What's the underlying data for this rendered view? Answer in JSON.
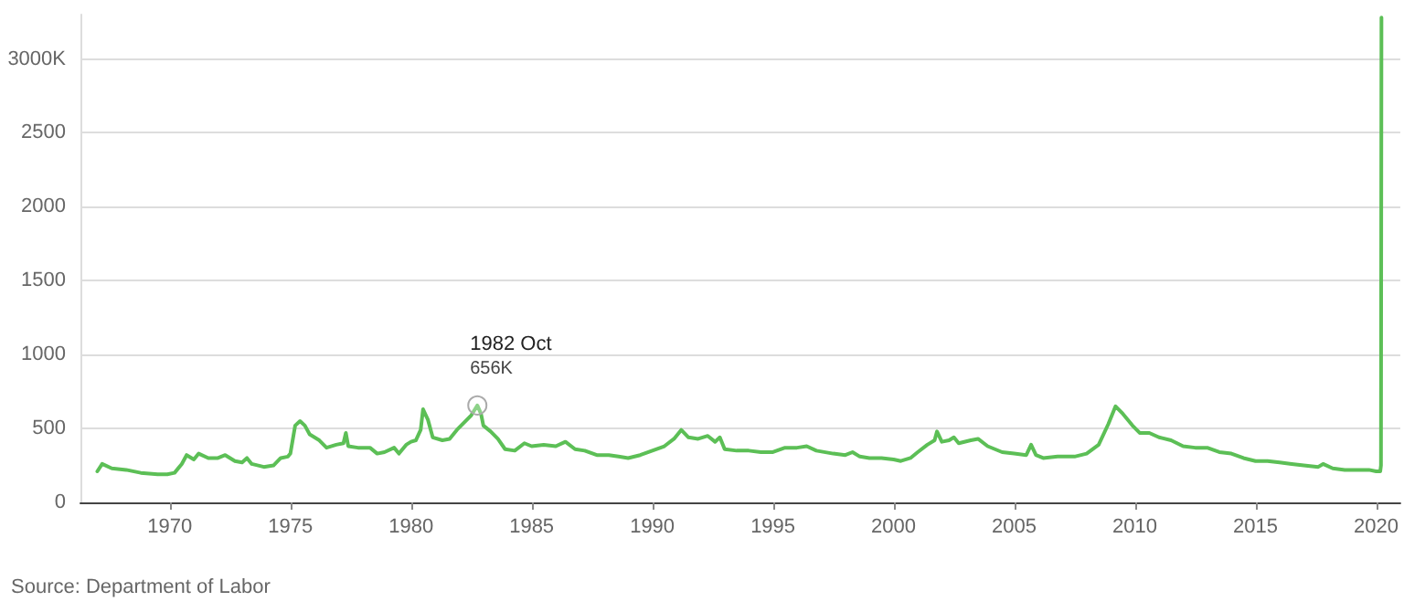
{
  "chart_data": {
    "type": "line",
    "xlim": [
      1966.3,
      2021
    ],
    "xticks": [
      1970,
      1975,
      1980,
      1985,
      1990,
      1995,
      2000,
      2005,
      2010,
      2015,
      2020
    ],
    "ylim": [
      0,
      3300
    ],
    "yticks": [
      0,
      500,
      1000,
      1500,
      2000,
      2500,
      {
        "value": 3000,
        "label": "3000K"
      }
    ],
    "grid": "y",
    "marker": "none",
    "line_style": "solid",
    "annotations": [
      {
        "text": "1982 Oct",
        "x": 1982.75,
        "y": 656
      },
      {
        "text": "656K",
        "x": 1982.75,
        "y": 656
      },
      "Source: Department of Labor"
    ],
    "x": [
      1967.0,
      1967.2,
      1967.6,
      1968.2,
      1968.8,
      1969.5,
      1969.9,
      1970.2,
      1970.5,
      1970.7,
      1971.0,
      1971.2,
      1971.6,
      1972.0,
      1972.3,
      1972.7,
      1973.0,
      1973.2,
      1973.4,
      1973.9,
      1974.3,
      1974.6,
      1974.9,
      1975.0,
      1975.2,
      1975.4,
      1975.6,
      1975.8,
      1976.2,
      1976.5,
      1976.9,
      1977.2,
      1977.3,
      1977.4,
      1977.8,
      1978.3,
      1978.6,
      1978.9,
      1979.3,
      1979.5,
      1979.8,
      1980.0,
      1980.2,
      1980.4,
      1980.5,
      1980.7,
      1980.9,
      1981.3,
      1981.6,
      1981.9,
      1982.2,
      1982.5,
      1982.75,
      1982.9,
      1983.0,
      1983.3,
      1983.6,
      1983.9,
      1984.3,
      1984.7,
      1985.0,
      1985.5,
      1986.0,
      1986.4,
      1986.8,
      1987.2,
      1987.7,
      1988.2,
      1988.6,
      1989.0,
      1989.5,
      1990.0,
      1990.5,
      1990.9,
      1991.2,
      1991.5,
      1991.9,
      1992.3,
      1992.6,
      1992.8,
      1993.0,
      1993.5,
      1994.0,
      1994.5,
      1995.0,
      1995.5,
      1996.0,
      1996.4,
      1996.8,
      1997.5,
      1998.0,
      1998.3,
      1998.6,
      1999.0,
      1999.5,
      2000.0,
      2000.3,
      2000.7,
      2001.0,
      2001.4,
      2001.7,
      2001.8,
      2002.0,
      2002.3,
      2002.5,
      2002.7,
      2003.2,
      2003.5,
      2003.9,
      2004.5,
      2005.0,
      2005.5,
      2005.7,
      2005.9,
      2006.2,
      2006.8,
      2007.5,
      2008.0,
      2008.5,
      2008.9,
      2009.2,
      2009.5,
      2009.9,
      2010.2,
      2010.6,
      2011.0,
      2011.5,
      2012.0,
      2012.5,
      2013.0,
      2013.5,
      2014.0,
      2014.5,
      2015.0,
      2015.5,
      2016.0,
      2016.5,
      2017.0,
      2017.6,
      2017.8,
      2018.2,
      2018.7,
      2019.2,
      2019.7,
      2020.0,
      2020.17,
      2020.2,
      2020.22
    ],
    "series": [
      {
        "color": "#5cbf56",
        "values": [
          210,
          260,
          230,
          220,
          200,
          190,
          190,
          200,
          260,
          320,
          290,
          330,
          300,
          300,
          320,
          280,
          270,
          300,
          260,
          240,
          250,
          300,
          310,
          330,
          520,
          550,
          520,
          460,
          420,
          370,
          390,
          400,
          470,
          380,
          370,
          370,
          330,
          340,
          370,
          330,
          390,
          410,
          420,
          490,
          630,
          560,
          440,
          420,
          430,
          490,
          540,
          590,
          656,
          600,
          520,
          480,
          430,
          360,
          350,
          400,
          380,
          390,
          380,
          410,
          360,
          350,
          320,
          320,
          310,
          300,
          320,
          350,
          380,
          430,
          490,
          440,
          430,
          450,
          410,
          440,
          360,
          350,
          350,
          340,
          340,
          370,
          370,
          380,
          350,
          330,
          320,
          340,
          310,
          300,
          300,
          290,
          280,
          300,
          340,
          390,
          420,
          480,
          410,
          420,
          440,
          400,
          420,
          430,
          380,
          340,
          330,
          320,
          390,
          320,
          300,
          310,
          310,
          330,
          390,
          530,
          650,
          600,
          520,
          470,
          470,
          440,
          420,
          380,
          370,
          370,
          340,
          330,
          300,
          280,
          280,
          270,
          260,
          250,
          240,
          260,
          230,
          220,
          220,
          220,
          210,
          210,
          250,
          3280
        ]
      }
    ]
  }
}
